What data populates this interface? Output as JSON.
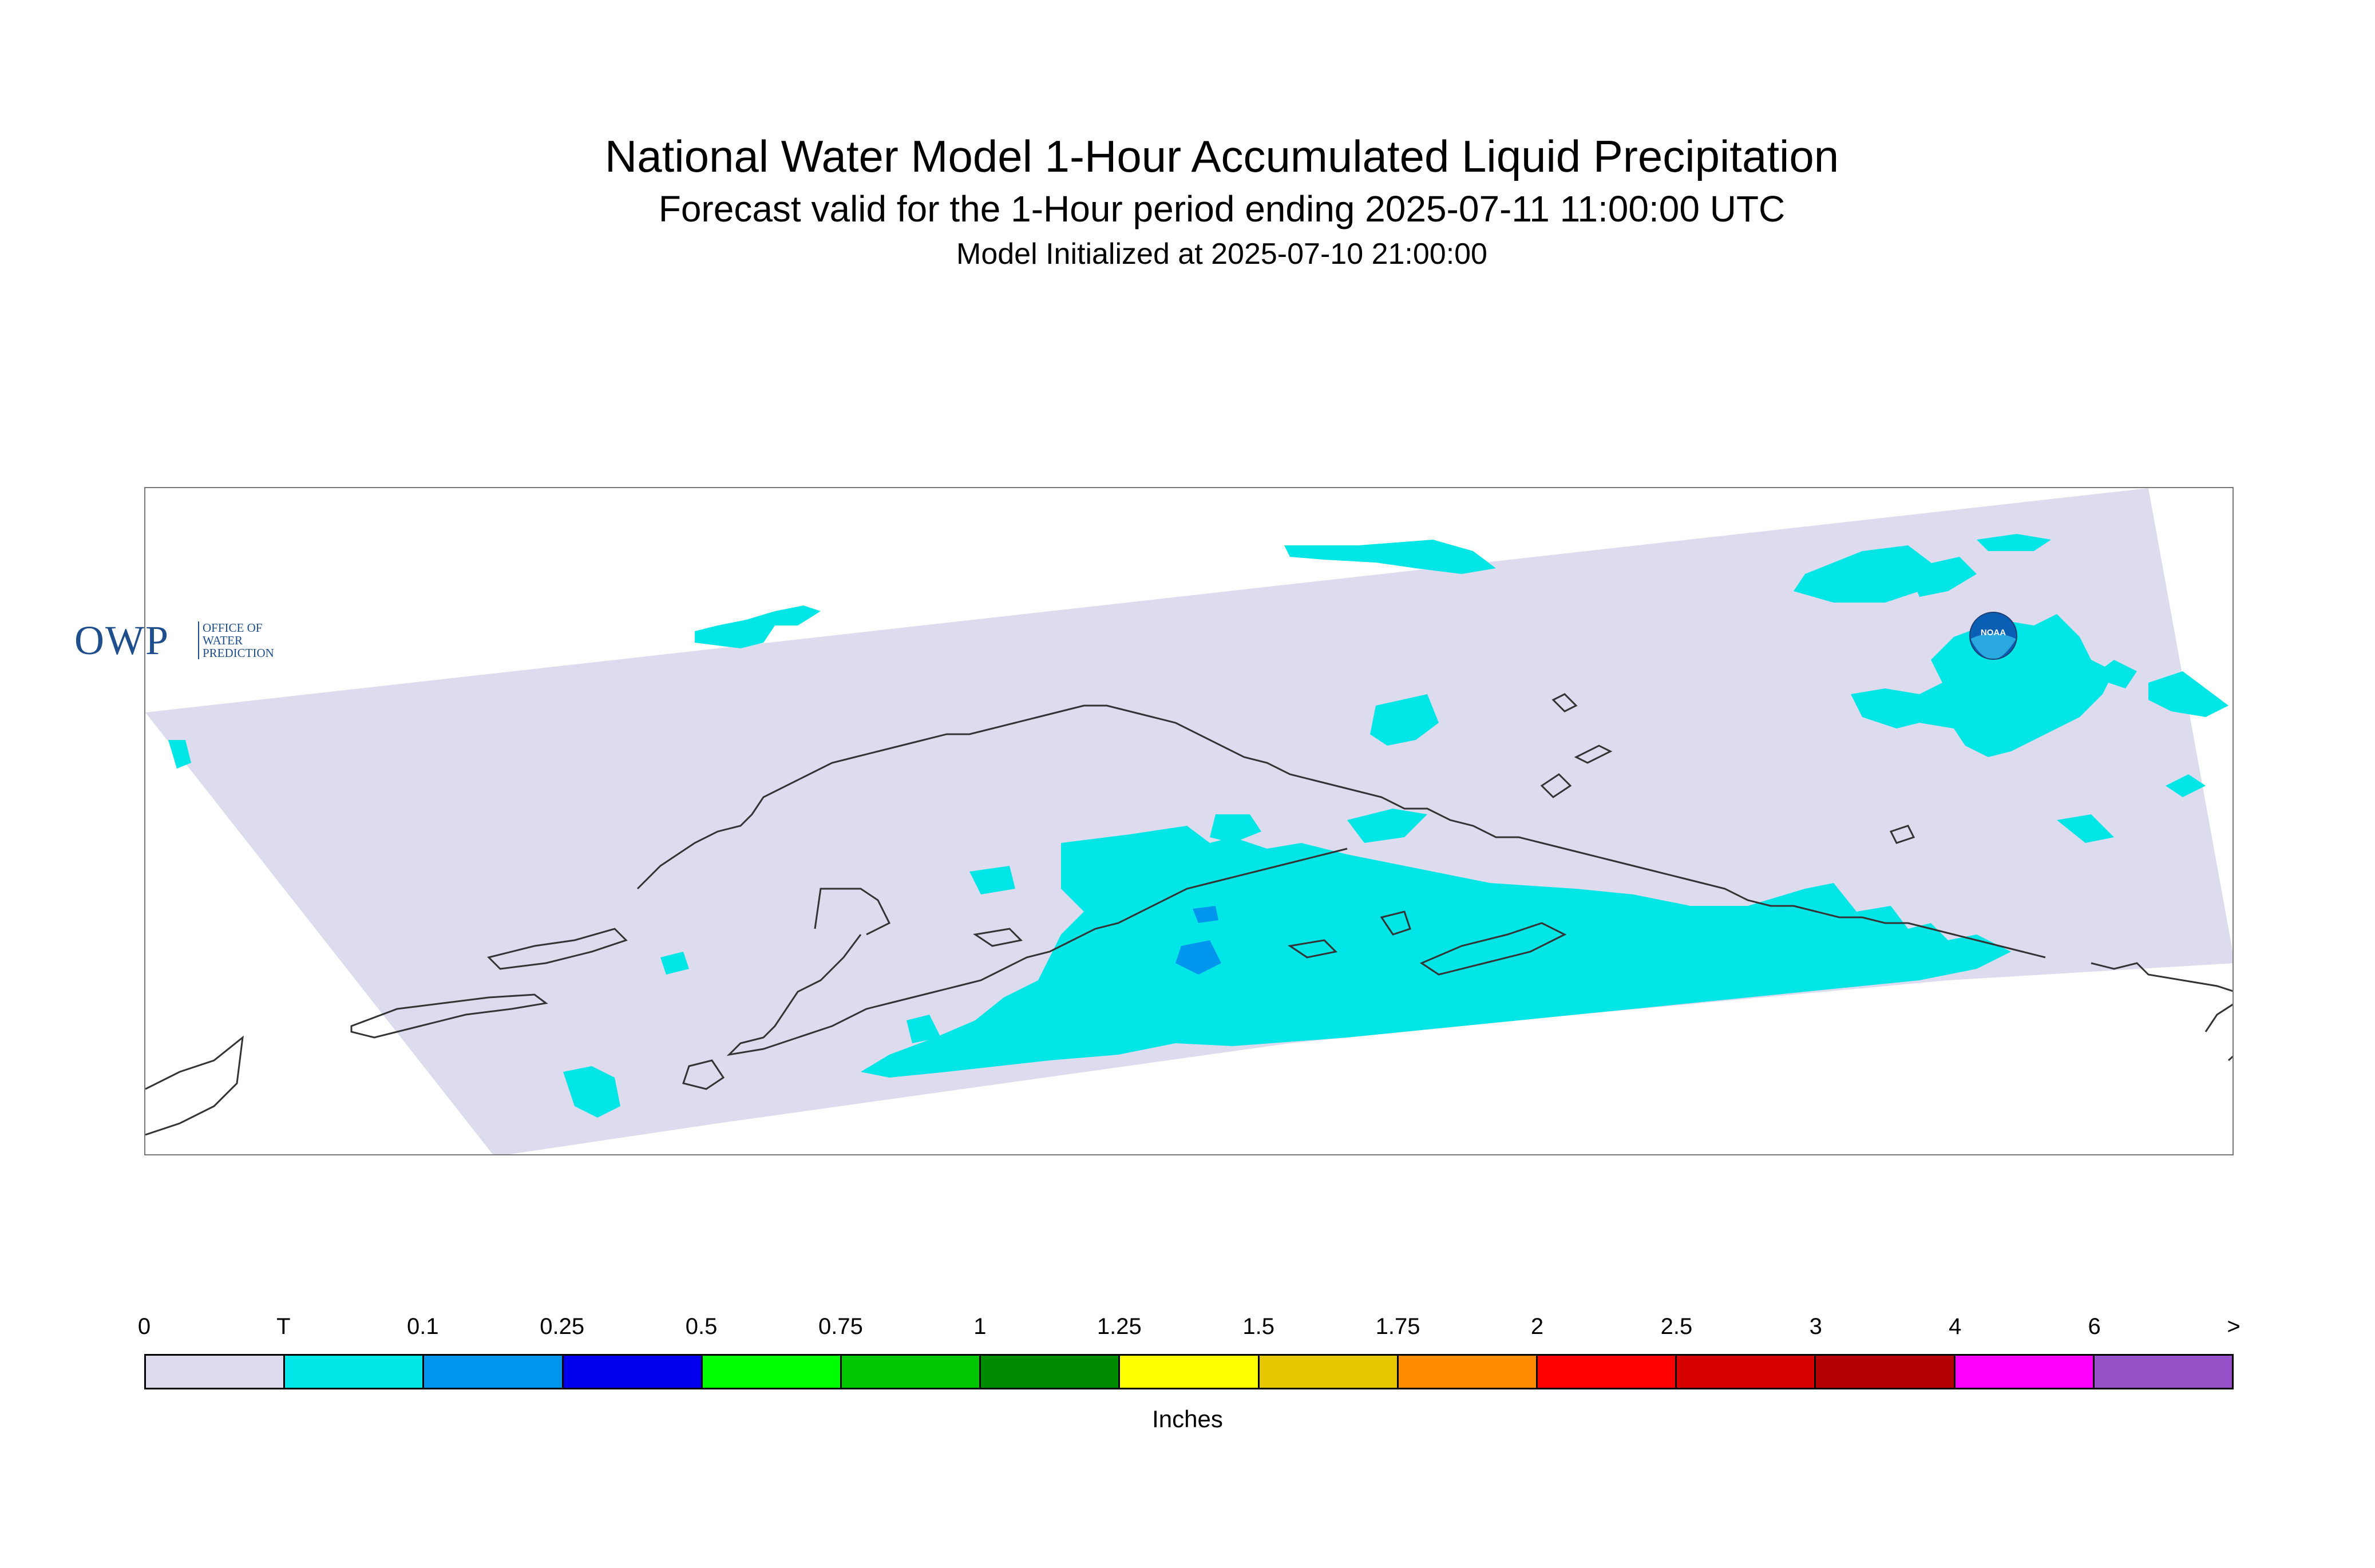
{
  "header": {
    "title": "National Water Model 1-Hour Accumulated Liquid Precipitation",
    "subtitle": "Forecast valid for the 1-Hour period ending 2025-07-11 11:00:00 UTC",
    "init": "Model Initialized at 2025-07-10 21:00:00"
  },
  "map": {
    "region": "Alaska",
    "background_color": "#dcdcee",
    "trace_color": "#00e5e5",
    "light_color": "#0096ee",
    "coastline_color": "#333333"
  },
  "logos": {
    "owp_main": "OWP",
    "owp_sub": [
      "OFFICE OF",
      "WATER",
      "PREDICTION"
    ],
    "noaa_icon": "noaa-logo-icon",
    "noaa_text": "NOAA"
  },
  "colorbar": {
    "labels": [
      "0",
      "T",
      "0.1",
      "0.25",
      "0.5",
      "0.75",
      "1",
      "1.25",
      "1.5",
      "1.75",
      "2",
      "2.5",
      "3",
      "4",
      "6",
      ">"
    ],
    "colors": [
      "#dcdcee",
      "#00e5e5",
      "#0096ee",
      "#0000ee",
      "#00ff00",
      "#00c800",
      "#008c00",
      "#ffff00",
      "#e6c800",
      "#ff8c00",
      "#ff0000",
      "#d70000",
      "#b40000",
      "#ff00ff",
      "#9650c8"
    ],
    "units": "Inches"
  }
}
